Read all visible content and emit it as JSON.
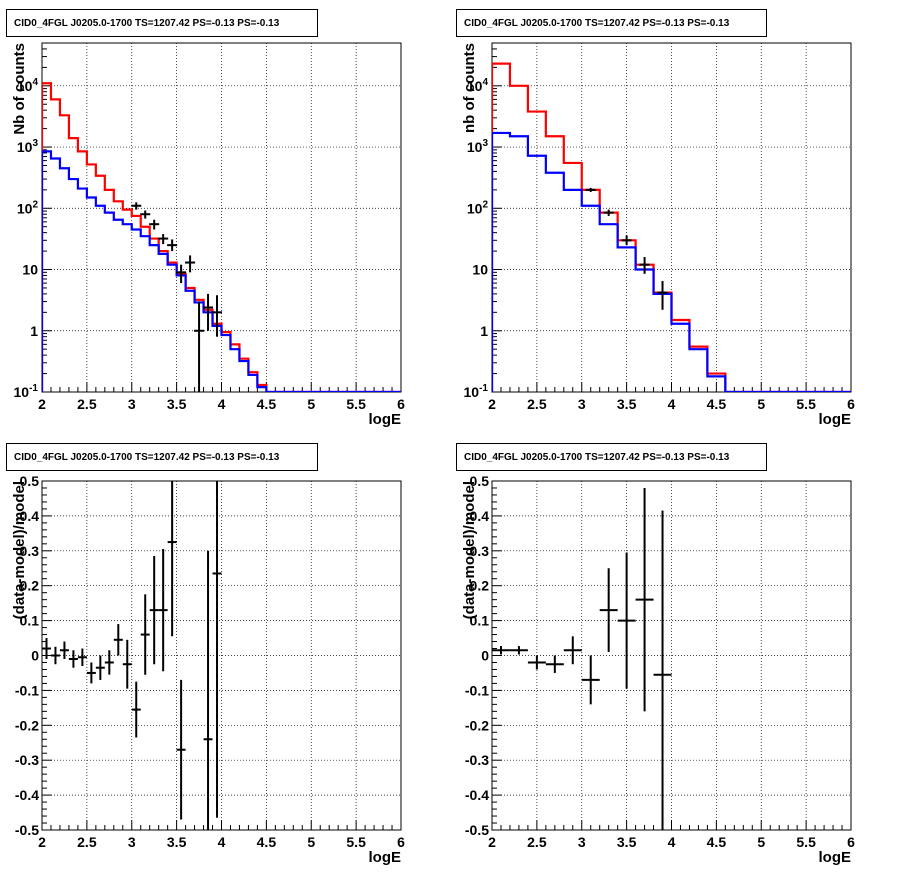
{
  "chart_data": [
    {
      "type": "line",
      "title": "CID0_4FGL J0205.0-1700 TS=1207.42 PS=-0.13 PS=-0.13",
      "xlabel": "logE",
      "ylabel": "Nb of counts",
      "xlim": [
        2,
        6
      ],
      "ylim": [
        0.1,
        50000
      ],
      "yscale": "log",
      "grid": true,
      "xticks": [
        "2",
        "2.5",
        "3",
        "3.5",
        "4",
        "4.5",
        "5",
        "5.5",
        "6"
      ],
      "yticks": [
        {
          "v": 0.1,
          "base": "10",
          "exp": "-1"
        },
        {
          "v": 1,
          "base": "1",
          "exp": ""
        },
        {
          "v": 10,
          "base": "10",
          "exp": ""
        },
        {
          "v": 100,
          "base": "10",
          "exp": "2"
        },
        {
          "v": 1000,
          "base": "10",
          "exp": "3"
        },
        {
          "v": 10000,
          "base": "10",
          "exp": "4"
        }
      ],
      "bin_edges": [
        2.0,
        2.1,
        2.2,
        2.3,
        2.4,
        2.5,
        2.6,
        2.7,
        2.8,
        2.9,
        3.0,
        3.1,
        3.2,
        3.3,
        3.4,
        3.5,
        3.6,
        3.7,
        3.8,
        3.9,
        4.0,
        4.1,
        4.2,
        4.3,
        4.4,
        4.5,
        4.6,
        4.7,
        4.8,
        4.9,
        5.0,
        5.1,
        5.2,
        5.3,
        5.4,
        5.5,
        5.6,
        5.7,
        5.8,
        5.9,
        6.0
      ],
      "series": [
        {
          "color": "#ff0000",
          "values": [
            11000,
            6000,
            3300,
            1400,
            850,
            520,
            340,
            200,
            130,
            95,
            75,
            50,
            32,
            20,
            13,
            8.5,
            5,
            3.2,
            2.2,
            1.3,
            0.95,
            0.6,
            0.35,
            0.21,
            0.13,
            0.1,
            0.1,
            0.1,
            0.1,
            0.1,
            0.1,
            0.1,
            0.1,
            0.1,
            0.1,
            0.1,
            0.1,
            0.1,
            0.1,
            0.1
          ]
        },
        {
          "color": "#0000ff",
          "values": [
            850,
            650,
            450,
            300,
            210,
            150,
            110,
            85,
            65,
            55,
            45,
            35,
            25,
            18,
            12,
            8,
            4.5,
            2.9,
            2.0,
            1.2,
            0.85,
            0.5,
            0.32,
            0.19,
            0.12,
            0.1,
            0.1,
            0.1,
            0.1,
            0.1,
            0.1,
            0.1,
            0.1,
            0.1,
            0.1,
            0.1,
            0.1,
            0.1,
            0.1,
            0.1
          ]
        }
      ],
      "points": [
        {
          "x": 3.05,
          "y": 110,
          "lo": 95,
          "hi": 125
        },
        {
          "x": 3.15,
          "y": 80,
          "lo": 68,
          "hi": 92
        },
        {
          "x": 3.25,
          "y": 55,
          "lo": 45,
          "hi": 65
        },
        {
          "x": 3.35,
          "y": 32,
          "lo": 26,
          "hi": 38
        },
        {
          "x": 3.45,
          "y": 25,
          "lo": 20,
          "hi": 31
        },
        {
          "x": 3.55,
          "y": 9,
          "lo": 6,
          "hi": 12
        },
        {
          "x": 3.65,
          "y": 13,
          "lo": 9,
          "hi": 17
        },
        {
          "x": 3.75,
          "y": 1,
          "lo": 0.1,
          "hi": 3
        },
        {
          "x": 3.85,
          "y": 2.4,
          "lo": 1,
          "hi": 4
        },
        {
          "x": 3.95,
          "y": 2,
          "lo": 0.8,
          "hi": 3.8
        }
      ]
    },
    {
      "type": "line",
      "title": "CID0_4FGL J0205.0-1700 TS=1207.42 PS=-0.13 PS=-0.13",
      "xlabel": "logE",
      "ylabel": "nb of counts",
      "xlim": [
        2,
        6
      ],
      "ylim": [
        0.1,
        50000
      ],
      "yscale": "log",
      "grid": true,
      "xticks": [
        "2",
        "2.5",
        "3",
        "3.5",
        "4",
        "4.5",
        "5",
        "5.5",
        "6"
      ],
      "yticks": [
        {
          "v": 0.1,
          "base": "10",
          "exp": "-1"
        },
        {
          "v": 1,
          "base": "1",
          "exp": ""
        },
        {
          "v": 10,
          "base": "10",
          "exp": ""
        },
        {
          "v": 100,
          "base": "10",
          "exp": "2"
        },
        {
          "v": 1000,
          "base": "10",
          "exp": "3"
        },
        {
          "v": 10000,
          "base": "10",
          "exp": "4"
        }
      ],
      "bin_edges": [
        2.0,
        2.2,
        2.4,
        2.6,
        2.8,
        3.0,
        3.2,
        3.4,
        3.6,
        3.8,
        4.0,
        4.2,
        4.4,
        4.6,
        4.8,
        5.0,
        5.2,
        5.4,
        5.6,
        5.8,
        6.0
      ],
      "series": [
        {
          "color": "#ff0000",
          "values": [
            23000,
            10000,
            3800,
            1500,
            550,
            200,
            85,
            30,
            12,
            4.2,
            1.5,
            0.55,
            0.2,
            0.1,
            0.1,
            0.1,
            0.1,
            0.1,
            0.1,
            0.1
          ]
        },
        {
          "color": "#0000ff",
          "values": [
            1700,
            1500,
            720,
            380,
            200,
            110,
            55,
            23,
            10,
            4.0,
            1.3,
            0.5,
            0.18,
            0.1,
            0.1,
            0.1,
            0.1,
            0.1,
            0.1,
            0.1
          ]
        }
      ],
      "points": [
        {
          "x": 3.1,
          "y": 200,
          "lo": 185,
          "hi": 215
        },
        {
          "x": 3.3,
          "y": 85,
          "lo": 75,
          "hi": 95
        },
        {
          "x": 3.5,
          "y": 30,
          "lo": 25,
          "hi": 36
        },
        {
          "x": 3.7,
          "y": 12,
          "lo": 8.5,
          "hi": 16
        },
        {
          "x": 3.9,
          "y": 4.2,
          "lo": 2.2,
          "hi": 6.5
        }
      ]
    },
    {
      "type": "scatter",
      "title": "CID0_4FGL J0205.0-1700 TS=1207.42 PS=-0.13 PS=-0.13",
      "xlabel": "logE",
      "ylabel": "(data-model)/model",
      "xlim": [
        2,
        6
      ],
      "ylim": [
        -0.5,
        0.5
      ],
      "grid": true,
      "xticks": [
        "2",
        "2.5",
        "3",
        "3.5",
        "4",
        "4.5",
        "5",
        "5.5",
        "6"
      ],
      "yticks": [
        "-0.5",
        "-0.4",
        "-0.3",
        "-0.2",
        "-0.1",
        "0",
        "0.1",
        "0.2",
        "0.3",
        "0.4",
        "0.5"
      ],
      "points": [
        {
          "x": 2.05,
          "y": 0.02,
          "xerr": 0.05,
          "yerr": 0.03
        },
        {
          "x": 2.15,
          "y": 0.0,
          "xerr": 0.05,
          "yerr": 0.025
        },
        {
          "x": 2.25,
          "y": 0.015,
          "xerr": 0.05,
          "yerr": 0.025
        },
        {
          "x": 2.35,
          "y": -0.01,
          "xerr": 0.05,
          "yerr": 0.025
        },
        {
          "x": 2.45,
          "y": -0.005,
          "xerr": 0.05,
          "yerr": 0.025
        },
        {
          "x": 2.55,
          "y": -0.05,
          "xerr": 0.05,
          "yerr": 0.03
        },
        {
          "x": 2.65,
          "y": -0.035,
          "xerr": 0.05,
          "yerr": 0.035
        },
        {
          "x": 2.75,
          "y": -0.02,
          "xerr": 0.05,
          "yerr": 0.035
        },
        {
          "x": 2.85,
          "y": 0.045,
          "xerr": 0.05,
          "yerr": 0.045
        },
        {
          "x": 2.95,
          "y": -0.025,
          "xerr": 0.05,
          "yerr": 0.07
        },
        {
          "x": 3.05,
          "y": -0.155,
          "xerr": 0.05,
          "yerr": 0.08
        },
        {
          "x": 3.15,
          "y": 0.06,
          "xerr": 0.05,
          "yerr": 0.115
        },
        {
          "x": 3.25,
          "y": 0.13,
          "xerr": 0.05,
          "yerr": 0.155
        },
        {
          "x": 3.35,
          "y": 0.13,
          "xerr": 0.05,
          "yerr": 0.175
        },
        {
          "x": 3.45,
          "y": 0.325,
          "xerr": 0.05,
          "yerr": 0.27
        },
        {
          "x": 3.55,
          "y": -0.27,
          "xerr": 0.05,
          "yerr": 0.2
        },
        {
          "x": 3.85,
          "y": -0.24,
          "xerr": 0.05,
          "yerr": 0.54
        },
        {
          "x": 3.95,
          "y": 0.235,
          "xerr": 0.05,
          "yerr": 0.7
        }
      ]
    },
    {
      "type": "scatter",
      "title": "CID0_4FGL J0205.0-1700 TS=1207.42 PS=-0.13 PS=-0.13",
      "xlabel": "logE",
      "ylabel": "(data-model)/model",
      "xlim": [
        2,
        6
      ],
      "ylim": [
        -0.5,
        0.5
      ],
      "grid": true,
      "xticks": [
        "2",
        "2.5",
        "3",
        "3.5",
        "4",
        "4.5",
        "5",
        "5.5",
        "6"
      ],
      "yticks": [
        "-0.5",
        "-0.4",
        "-0.3",
        "-0.2",
        "-0.1",
        "0",
        "0.1",
        "0.2",
        "0.3",
        "0.4",
        "0.5"
      ],
      "points": [
        {
          "x": 2.1,
          "y": 0.015,
          "xerr": 0.1,
          "yerr": 0.012
        },
        {
          "x": 2.3,
          "y": 0.015,
          "xerr": 0.1,
          "yerr": 0.012
        },
        {
          "x": 2.5,
          "y": -0.02,
          "xerr": 0.1,
          "yerr": 0.02
        },
        {
          "x": 2.7,
          "y": -0.025,
          "xerr": 0.1,
          "yerr": 0.025
        },
        {
          "x": 2.9,
          "y": 0.015,
          "xerr": 0.1,
          "yerr": 0.04
        },
        {
          "x": 3.1,
          "y": -0.07,
          "xerr": 0.1,
          "yerr": 0.07
        },
        {
          "x": 3.3,
          "y": 0.13,
          "xerr": 0.1,
          "yerr": 0.12
        },
        {
          "x": 3.5,
          "y": 0.1,
          "xerr": 0.1,
          "yerr": 0.195
        },
        {
          "x": 3.7,
          "y": 0.16,
          "xerr": 0.1,
          "yerr": 0.32
        },
        {
          "x": 3.9,
          "y": -0.055,
          "xerr": 0.1,
          "yerr": 0.47
        }
      ]
    }
  ]
}
